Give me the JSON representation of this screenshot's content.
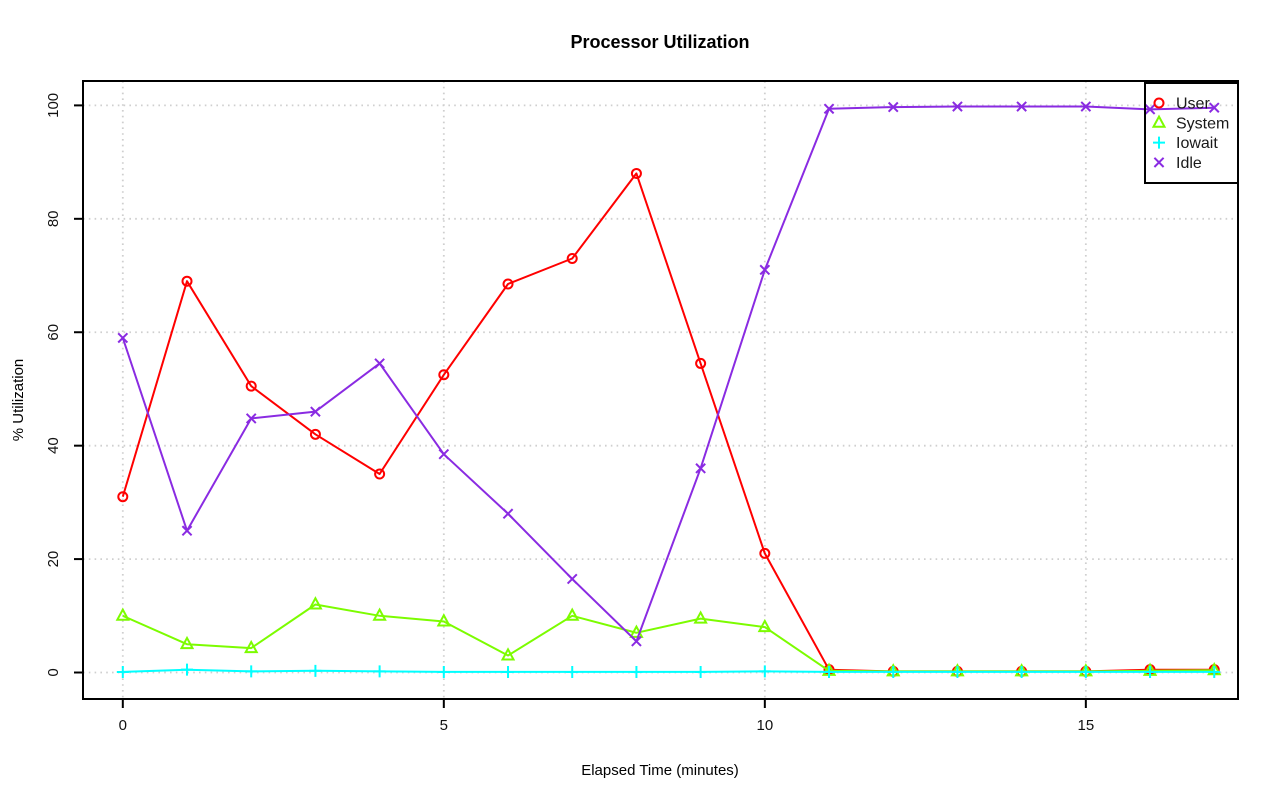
{
  "chart_data": {
    "type": "line",
    "title": "Processor Utilization",
    "xlabel": "Elapsed Time (minutes)",
    "ylabel": "% Utilization",
    "x": [
      0,
      1,
      2,
      3,
      4,
      5,
      6,
      7,
      8,
      9,
      10,
      11,
      12,
      13,
      14,
      15,
      16,
      17
    ],
    "series": [
      {
        "name": "User",
        "color": "#ff0000",
        "marker": "circle",
        "values": [
          31,
          69,
          50.5,
          42,
          35,
          52.5,
          68.5,
          73,
          88,
          54.5,
          21,
          0.5,
          0.2,
          0.2,
          0.2,
          0.2,
          0.5,
          0.5
        ]
      },
      {
        "name": "System",
        "color": "#7cfc00",
        "marker": "triangle",
        "values": [
          10,
          5,
          4.3,
          12,
          10,
          9,
          3,
          10,
          7,
          9.5,
          8,
          0.3,
          0.2,
          0.2,
          0.2,
          0.2,
          0.3,
          0.4
        ]
      },
      {
        "name": "Iowait",
        "color": "#00ffff",
        "marker": "plus",
        "values": [
          0.1,
          0.5,
          0.2,
          0.3,
          0.2,
          0.1,
          0.1,
          0.1,
          0.1,
          0.1,
          0.2,
          0.1,
          0.1,
          0.1,
          0.1,
          0.1,
          0.1,
          0.1
        ]
      },
      {
        "name": "Idle",
        "color": "#8a2be2",
        "marker": "x",
        "values": [
          59,
          25,
          44.8,
          46,
          54.5,
          38.5,
          28,
          16.5,
          5.5,
          36,
          71,
          99.4,
          99.7,
          99.8,
          99.8,
          99.8,
          99.3,
          99.6
        ]
      }
    ],
    "xticks": [
      "0",
      "5",
      "10",
      "15"
    ],
    "xtick_values": [
      0,
      5,
      10,
      15
    ],
    "yticks": [
      "0",
      "20",
      "40",
      "60",
      "80",
      "100"
    ],
    "ytick_values": [
      0,
      20,
      40,
      60,
      80,
      100
    ],
    "xlim": [
      -0.62,
      17.37
    ],
    "ylim": [
      -4.67,
      104.3
    ],
    "grid": true,
    "grid_color": "#cfcfcf",
    "grid_style": "dotted",
    "axis_color": "#000000",
    "background": "#ffffff",
    "legend": {
      "position": "top-right",
      "entries": [
        "User",
        "System",
        "Iowait",
        "Idle"
      ]
    }
  }
}
